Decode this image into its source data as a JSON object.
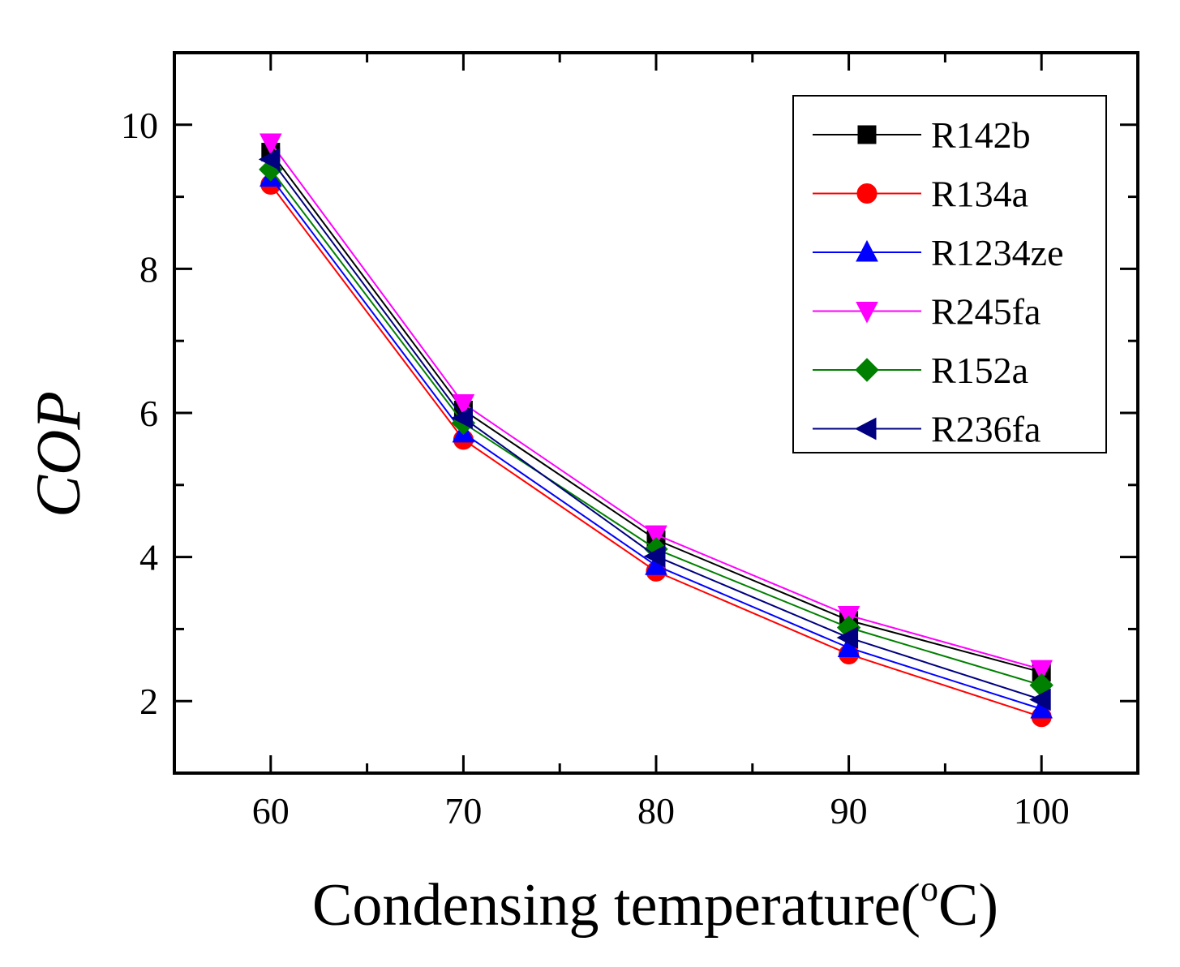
{
  "chart_data": {
    "type": "line",
    "title": "",
    "xlabel_main": "Condensing temperature(",
    "xlabel_sup": "o",
    "xlabel_end": "C)",
    "ylabel": "COP",
    "x": [
      60,
      70,
      80,
      90,
      100
    ],
    "xlim": [
      55,
      105
    ],
    "ylim": [
      1,
      11
    ],
    "xticks": [
      60,
      70,
      80,
      90,
      100
    ],
    "yticks": [
      2,
      4,
      6,
      8,
      10
    ],
    "legend_position": "top-right",
    "series": [
      {
        "name": "R142b",
        "color": "#000000",
        "marker": "square",
        "values": [
          9.62,
          6.04,
          4.24,
          3.12,
          2.4
        ]
      },
      {
        "name": "R134a",
        "color": "#ff0000",
        "marker": "circle",
        "values": [
          9.17,
          5.63,
          3.8,
          2.65,
          1.78
        ]
      },
      {
        "name": "R1234ze",
        "color": "#0000ff",
        "marker": "triangle-up",
        "values": [
          9.27,
          5.72,
          3.88,
          2.74,
          1.89
        ]
      },
      {
        "name": "R245fa",
        "color": "#ff00ff",
        "marker": "triangle-down",
        "values": [
          9.75,
          6.13,
          4.31,
          3.19,
          2.44
        ]
      },
      {
        "name": "R152a",
        "color": "#008000",
        "marker": "diamond",
        "values": [
          9.38,
          5.86,
          4.11,
          3.02,
          2.22
        ]
      },
      {
        "name": "R236fa",
        "color": "#000080",
        "marker": "triangle-left",
        "values": [
          9.52,
          5.93,
          4.01,
          2.88,
          2.02
        ]
      }
    ]
  }
}
